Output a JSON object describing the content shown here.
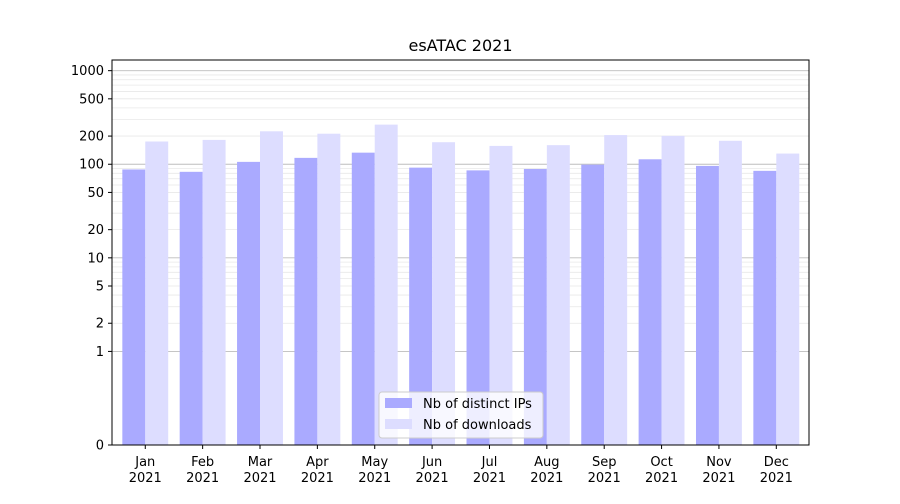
{
  "chart_data": {
    "type": "bar",
    "title": "esATAC 2021",
    "xlabel": "",
    "ylabel": "",
    "y_scale": "symlog",
    "ylim": [
      0,
      1300
    ],
    "grid": "horizontal major and minor lines",
    "legend_position": "bottom-center",
    "categories": [
      [
        "Jan",
        "2021"
      ],
      [
        "Feb",
        "2021"
      ],
      [
        "Mar",
        "2021"
      ],
      [
        "Apr",
        "2021"
      ],
      [
        "May",
        "2021"
      ],
      [
        "Jun",
        "2021"
      ],
      [
        "Jul",
        "2021"
      ],
      [
        "Aug",
        "2021"
      ],
      [
        "Sep",
        "2021"
      ],
      [
        "Oct",
        "2021"
      ],
      [
        "Nov",
        "2021"
      ],
      [
        "Dec",
        "2021"
      ]
    ],
    "y_ticks": [
      0,
      1,
      2,
      5,
      10,
      20,
      50,
      100,
      200,
      500,
      1000
    ],
    "series": [
      {
        "name": "Nb of distinct IPs",
        "color": "#aaaaff",
        "values": [
          88,
          83,
          106,
          117,
          133,
          92,
          86,
          89,
          99,
          113,
          96,
          85
        ]
      },
      {
        "name": "Nb of downloads",
        "color": "#ddddff",
        "values": [
          175,
          182,
          225,
          212,
          265,
          172,
          157,
          160,
          205,
          201,
          178,
          130
        ]
      }
    ]
  }
}
